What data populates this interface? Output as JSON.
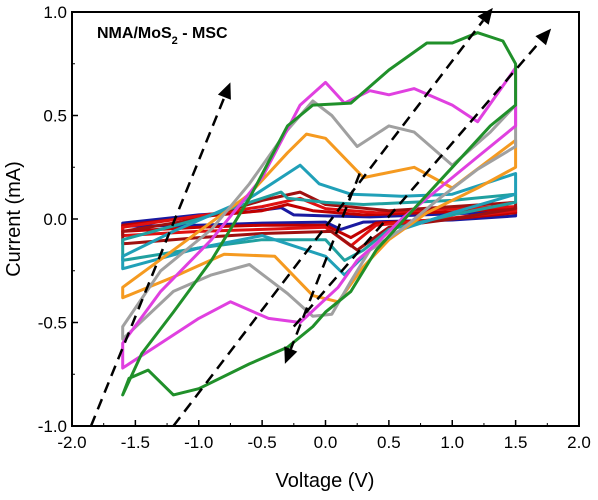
{
  "chart_data": {
    "type": "line",
    "title": "NMA/MoS2 - MSC",
    "title_main": "NMA/MoS",
    "title_sub": "2",
    "title_rest": " - MSC",
    "xlabel": "Voltage (V)",
    "ylabel": "Current (mA)",
    "xlim": [
      -2.0,
      2.0
    ],
    "ylim": [
      -1.0,
      1.0
    ],
    "x_ticks": [
      "-2.0",
      "-1.5",
      "-1.0",
      "-0.5",
      "0.0",
      "0.5",
      "1.0",
      "1.5",
      "2.0"
    ],
    "y_ticks": [
      "-1.0",
      "-0.5",
      "0.0",
      "0.5",
      "1.0"
    ],
    "grid": false,
    "arrows": [
      {
        "from": [
          -1.85,
          -1.0
        ],
        "to": [
          -0.75,
          0.66
        ]
      },
      {
        "from": [
          -1.2,
          -1.0
        ],
        "to": [
          1.32,
          1.02
        ]
      },
      {
        "from": [
          0.27,
          0.22
        ],
        "to": [
          -0.32,
          -0.7
        ]
      },
      {
        "from": [
          -0.25,
          -0.52
        ],
        "to": [
          1.78,
          0.92
        ]
      }
    ],
    "series": [
      {
        "color": "#1a1aa0",
        "upper": [
          [
            -1.6,
            -0.02
          ],
          [
            -1.0,
            0.02
          ],
          [
            -0.6,
            0.035
          ],
          [
            -0.35,
            0.055
          ],
          [
            -0.25,
            0.02
          ],
          [
            0.0,
            0.015
          ],
          [
            0.35,
            0.01
          ],
          [
            1.0,
            0.025
          ],
          [
            1.5,
            0.035
          ]
        ],
        "lower": [
          [
            1.5,
            0.015
          ],
          [
            1.0,
            -0.005
          ],
          [
            0.3,
            -0.015
          ],
          [
            0.12,
            -0.05
          ],
          [
            0.0,
            -0.015
          ],
          [
            -0.5,
            -0.02
          ],
          [
            -1.0,
            -0.03
          ],
          [
            -1.6,
            -0.035
          ]
        ]
      },
      {
        "color": "#c00000",
        "upper": [
          [
            -1.6,
            -0.03
          ],
          [
            -1.0,
            0.01
          ],
          [
            -0.5,
            0.04
          ],
          [
            -0.3,
            0.07
          ],
          [
            -0.1,
            0.04
          ],
          [
            0.3,
            0.02
          ],
          [
            1.0,
            0.035
          ],
          [
            1.5,
            0.05
          ]
        ],
        "lower": [
          [
            1.5,
            0.03
          ],
          [
            1.0,
            0.0
          ],
          [
            0.4,
            -0.02
          ],
          [
            0.2,
            -0.09
          ],
          [
            0.0,
            -0.03
          ],
          [
            -0.5,
            -0.03
          ],
          [
            -1.0,
            -0.04
          ],
          [
            -1.6,
            -0.06
          ]
        ]
      },
      {
        "color": "#e01010",
        "upper": [
          [
            -1.6,
            -0.04
          ],
          [
            -1.0,
            0.015
          ],
          [
            -0.5,
            0.06
          ],
          [
            -0.2,
            0.1
          ],
          [
            0.0,
            0.05
          ],
          [
            0.4,
            0.03
          ],
          [
            1.0,
            0.05
          ],
          [
            1.5,
            0.06
          ]
        ],
        "lower": [
          [
            1.5,
            0.04
          ],
          [
            1.0,
            0.005
          ],
          [
            0.4,
            -0.03
          ],
          [
            0.2,
            -0.13
          ],
          [
            0.0,
            -0.04
          ],
          [
            -0.5,
            -0.05
          ],
          [
            -1.0,
            -0.06
          ],
          [
            -1.6,
            -0.08
          ]
        ]
      },
      {
        "color": "#a01010",
        "upper": [
          [
            -1.6,
            -0.06
          ],
          [
            -1.0,
            0.0
          ],
          [
            -0.5,
            0.09
          ],
          [
            -0.2,
            0.13
          ],
          [
            0.0,
            0.07
          ],
          [
            0.5,
            0.04
          ],
          [
            1.0,
            0.06
          ],
          [
            1.5,
            0.08
          ]
        ],
        "lower": [
          [
            1.5,
            0.05
          ],
          [
            1.0,
            0.0
          ],
          [
            0.5,
            -0.04
          ],
          [
            0.25,
            -0.15
          ],
          [
            0.05,
            -0.06
          ],
          [
            -0.5,
            -0.07
          ],
          [
            -1.0,
            -0.09
          ],
          [
            -1.6,
            -0.12
          ]
        ]
      },
      {
        "color": "#20a0a0",
        "upper": [
          [
            -1.6,
            -0.1
          ],
          [
            -1.0,
            0.0
          ],
          [
            -0.6,
            0.08
          ],
          [
            -0.35,
            0.13
          ],
          [
            -0.3,
            0.1
          ],
          [
            0.0,
            0.08
          ],
          [
            0.3,
            0.07
          ],
          [
            1.0,
            0.09
          ],
          [
            1.5,
            0.12
          ]
        ],
        "lower": [
          [
            1.5,
            0.08
          ],
          [
            1.0,
            0.02
          ],
          [
            0.5,
            -0.05
          ],
          [
            0.3,
            -0.15
          ],
          [
            0.15,
            -0.2
          ],
          [
            0.0,
            -0.1
          ],
          [
            -0.5,
            -0.1
          ],
          [
            -1.0,
            -0.14
          ],
          [
            -1.6,
            -0.2
          ]
        ]
      },
      {
        "color": "#20a0b8",
        "upper": [
          [
            -1.6,
            -0.18
          ],
          [
            -1.2,
            -0.06
          ],
          [
            -0.6,
            0.1
          ],
          [
            -0.2,
            0.26
          ],
          [
            -0.05,
            0.17
          ],
          [
            0.2,
            0.12
          ],
          [
            0.6,
            0.11
          ],
          [
            1.0,
            0.12
          ],
          [
            1.5,
            0.22
          ]
        ],
        "lower": [
          [
            1.5,
            0.12
          ],
          [
            1.0,
            0.03
          ],
          [
            0.6,
            -0.05
          ],
          [
            0.35,
            -0.15
          ],
          [
            0.15,
            -0.27
          ],
          [
            0.0,
            -0.18
          ],
          [
            -0.5,
            -0.08
          ],
          [
            -1.0,
            -0.14
          ],
          [
            -1.6,
            -0.24
          ]
        ]
      },
      {
        "color": "#f59a20",
        "upper": [
          [
            -1.6,
            -0.33
          ],
          [
            -1.2,
            -0.15
          ],
          [
            -0.6,
            0.12
          ],
          [
            -0.3,
            0.32
          ],
          [
            -0.15,
            0.41
          ],
          [
            0.0,
            0.39
          ],
          [
            0.3,
            0.2
          ],
          [
            0.7,
            0.25
          ],
          [
            1.0,
            0.15
          ],
          [
            1.5,
            0.38
          ]
        ],
        "lower": [
          [
            1.5,
            0.25
          ],
          [
            1.2,
            0.15
          ],
          [
            0.8,
            0.03
          ],
          [
            0.5,
            -0.1
          ],
          [
            0.3,
            -0.23
          ],
          [
            0.1,
            -0.4
          ],
          [
            -0.1,
            -0.37
          ],
          [
            -0.4,
            -0.18
          ],
          [
            -0.8,
            -0.17
          ],
          [
            -1.2,
            -0.28
          ],
          [
            -1.6,
            -0.38
          ]
        ]
      },
      {
        "color": "#a0a0a0",
        "upper": [
          [
            -1.6,
            -0.52
          ],
          [
            -1.3,
            -0.25
          ],
          [
            -0.9,
            -0.05
          ],
          [
            -0.6,
            0.17
          ],
          [
            -0.3,
            0.43
          ],
          [
            -0.1,
            0.57
          ],
          [
            0.05,
            0.5
          ],
          [
            0.25,
            0.35
          ],
          [
            0.5,
            0.45
          ],
          [
            0.7,
            0.42
          ],
          [
            1.0,
            0.26
          ],
          [
            1.3,
            0.42
          ],
          [
            1.5,
            0.55
          ]
        ],
        "lower": [
          [
            1.5,
            0.35
          ],
          [
            1.2,
            0.24
          ],
          [
            0.9,
            0.1
          ],
          [
            0.6,
            -0.05
          ],
          [
            0.35,
            -0.15
          ],
          [
            0.2,
            -0.3
          ],
          [
            0.05,
            -0.46
          ],
          [
            -0.1,
            -0.47
          ],
          [
            -0.3,
            -0.36
          ],
          [
            -0.6,
            -0.22
          ],
          [
            -0.9,
            -0.27
          ],
          [
            -1.2,
            -0.35
          ],
          [
            -1.6,
            -0.58
          ]
        ]
      },
      {
        "color": "#e040e0",
        "upper": [
          [
            -1.6,
            -0.6
          ],
          [
            -1.3,
            -0.35
          ],
          [
            -0.9,
            -0.1
          ],
          [
            -0.5,
            0.2
          ],
          [
            -0.2,
            0.55
          ],
          [
            0.0,
            0.66
          ],
          [
            0.15,
            0.56
          ],
          [
            0.35,
            0.62
          ],
          [
            0.5,
            0.6
          ],
          [
            0.7,
            0.63
          ],
          [
            1.0,
            0.55
          ],
          [
            1.2,
            0.47
          ],
          [
            1.5,
            0.73
          ]
        ],
        "lower": [
          [
            1.5,
            0.45
          ],
          [
            1.2,
            0.3
          ],
          [
            0.9,
            0.15
          ],
          [
            0.6,
            0.0
          ],
          [
            0.4,
            -0.12
          ],
          [
            0.25,
            -0.2
          ],
          [
            0.1,
            -0.33
          ],
          [
            -0.2,
            -0.5
          ],
          [
            -0.45,
            -0.48
          ],
          [
            -0.75,
            -0.4
          ],
          [
            -1.0,
            -0.48
          ],
          [
            -1.3,
            -0.6
          ],
          [
            -1.6,
            -0.72
          ]
        ]
      },
      {
        "color": "#20902a",
        "upper": [
          [
            -1.6,
            -0.85
          ],
          [
            -1.45,
            -0.65
          ],
          [
            -1.2,
            -0.45
          ],
          [
            -0.9,
            -0.2
          ],
          [
            -0.6,
            0.1
          ],
          [
            -0.3,
            0.45
          ],
          [
            -0.1,
            0.55
          ],
          [
            0.2,
            0.56
          ],
          [
            0.5,
            0.72
          ],
          [
            0.8,
            0.85
          ],
          [
            1.0,
            0.85
          ],
          [
            1.2,
            0.9
          ],
          [
            1.4,
            0.86
          ],
          [
            1.5,
            0.75
          ]
        ],
        "lower": [
          [
            1.5,
            0.55
          ],
          [
            1.3,
            0.45
          ],
          [
            1.0,
            0.25
          ],
          [
            0.7,
            0.05
          ],
          [
            0.4,
            -0.15
          ],
          [
            0.2,
            -0.35
          ],
          [
            0.0,
            -0.45
          ],
          [
            -0.1,
            -0.52
          ],
          [
            -0.3,
            -0.62
          ],
          [
            -0.6,
            -0.7
          ],
          [
            -1.0,
            -0.82
          ],
          [
            -1.2,
            -0.85
          ],
          [
            -1.4,
            -0.73
          ],
          [
            -1.55,
            -0.77
          ],
          [
            -1.6,
            -0.85
          ]
        ]
      }
    ]
  }
}
